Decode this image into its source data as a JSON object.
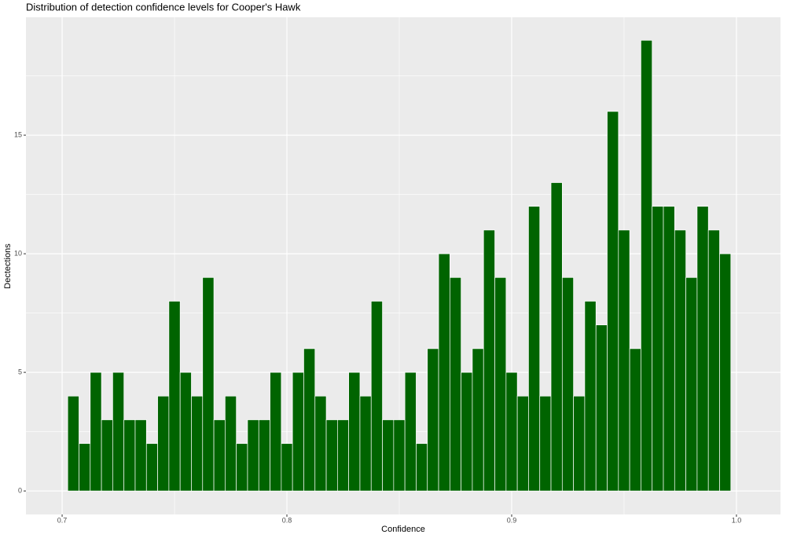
{
  "chart_data": {
    "type": "histogram",
    "title": "Distribution of detection confidence levels for Cooper's Hawk",
    "x_label": "Confidence",
    "y_label": "Dectections",
    "bins": [
      0.7025,
      0.7075,
      0.7125,
      0.7175,
      0.7225,
      0.7275,
      0.7325,
      0.7375,
      0.7425,
      0.7475,
      0.7525,
      0.7575,
      0.7625,
      0.7675,
      0.7725,
      0.7775,
      0.7825,
      0.7875,
      0.7925,
      0.7975,
      0.8025,
      0.8075,
      0.8125,
      0.8175,
      0.8225,
      0.8275,
      0.8325,
      0.8375,
      0.8425,
      0.8475,
      0.8525,
      0.8575,
      0.8625,
      0.8675,
      0.8725,
      0.8775,
      0.8825,
      0.8875,
      0.8925,
      0.8975,
      0.9025,
      0.9075,
      0.9125,
      0.9175,
      0.9225,
      0.9275,
      0.9325,
      0.9375,
      0.9425,
      0.9475,
      0.9525,
      0.9575,
      0.9625,
      0.9675,
      0.9725,
      0.9775,
      0.9825,
      0.9875,
      0.9925,
      0.9975
    ],
    "values": [
      4,
      2,
      5,
      3,
      5,
      3,
      3,
      2,
      4,
      8,
      5,
      4,
      9,
      3,
      4,
      2,
      3,
      3,
      5,
      2,
      5,
      6,
      4,
      3,
      3,
      5,
      4,
      8,
      3,
      3,
      5,
      2,
      6,
      10,
      9,
      5,
      6,
      11,
      9,
      5,
      4,
      12,
      4,
      13,
      9,
      4,
      8,
      7,
      16,
      11,
      6,
      19,
      12,
      12,
      11,
      9,
      12,
      11,
      10
    ],
    "color": "#006400",
    "xlim": [
      0.6839,
      1.0196
    ],
    "ylim": [
      -0.99,
      19.97
    ],
    "xticks": [
      0.7,
      0.8,
      0.9,
      {
        "value": 1.0,
        "label": "1.0"
      }
    ],
    "yticks": [
      0,
      5,
      10,
      15
    ],
    "grid": true
  }
}
